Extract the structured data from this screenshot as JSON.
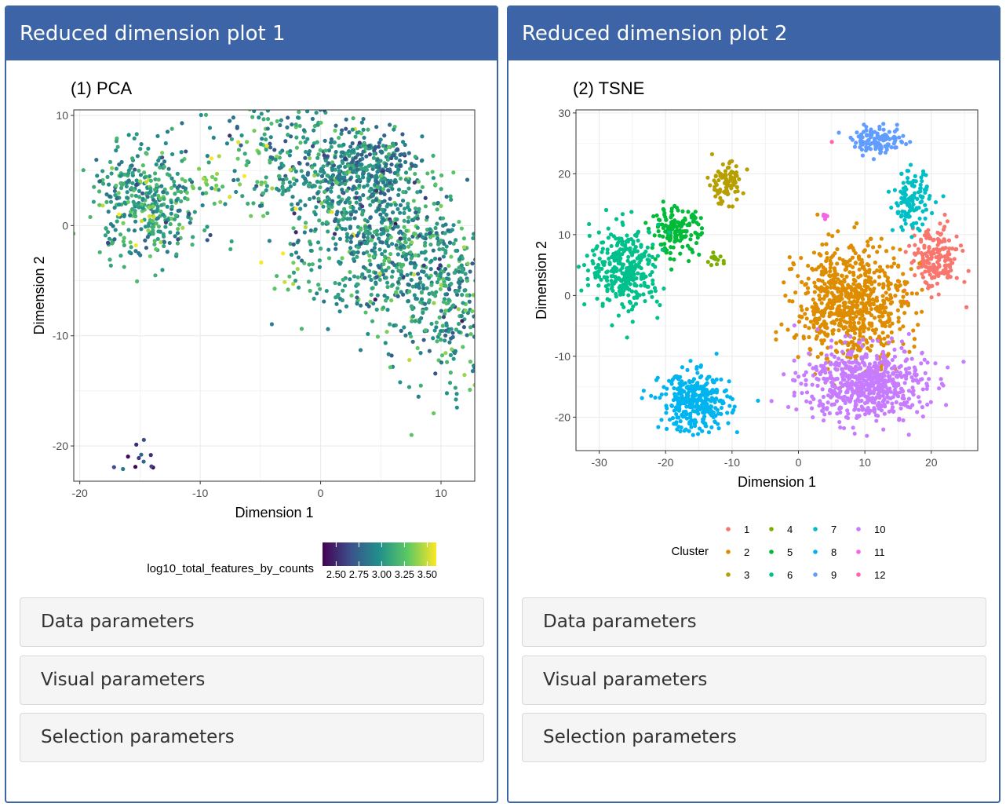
{
  "panels": [
    {
      "title": "Reduced dimension plot 1",
      "accordions": [
        "Data parameters",
        "Visual parameters",
        "Selection parameters"
      ]
    },
    {
      "title": "Reduced dimension plot 2",
      "accordions": [
        "Data parameters",
        "Visual parameters",
        "Selection parameters"
      ]
    }
  ],
  "chart_data": [
    {
      "type": "scatter",
      "title": "(1) PCA",
      "xlabel": "Dimension 1",
      "ylabel": "Dimension 2",
      "xlim": [
        -20.5,
        12.8
      ],
      "ylim": [
        -23.2,
        10.5
      ],
      "xticks": [
        "-20",
        "-10",
        "0",
        "10"
      ],
      "xtick_values": [
        -20,
        -10,
        0,
        10
      ],
      "yticks": [
        "-20",
        "-10",
        "0",
        "10"
      ],
      "ytick_values": [
        -20,
        -10,
        0,
        10
      ],
      "grid": true,
      "color_by": "log10_total_features_by_counts",
      "colorbar": {
        "title": "log10_total_features_by_counts",
        "range": [
          2.35,
          3.6
        ],
        "tick_labels": [
          "2.50",
          "2.75",
          "3.00",
          "3.25",
          "3.50"
        ],
        "tick_values": [
          2.5,
          2.75,
          3.0,
          3.25,
          3.5
        ],
        "colors": [
          "#440154",
          "#3b528b",
          "#21908c",
          "#5dc863",
          "#fde725"
        ]
      },
      "legend_position": "bottom",
      "clusters": [
        {
          "cx": 5.5,
          "cy": -1.5,
          "sx": 3.2,
          "sy": 9.0,
          "rot": 0.78,
          "n": 1400,
          "val": 3.0
        },
        {
          "cx": 4.0,
          "cy": 5.5,
          "sx": 2.0,
          "sy": 1.6,
          "rot": 0.3,
          "n": 260,
          "val": 2.9
        },
        {
          "cx": -14.5,
          "cy": 2.0,
          "sx": 2.2,
          "sy": 2.4,
          "rot": 0.0,
          "n": 380,
          "val": 3.05
        },
        {
          "cx": -8.0,
          "cy": 4.5,
          "sx": 1.5,
          "sy": 1.3,
          "rot": 0.0,
          "n": 28,
          "val": 3.35
        },
        {
          "cx": -15.0,
          "cy": -20.8,
          "sx": 1.2,
          "sy": 0.8,
          "rot": 0.0,
          "n": 12,
          "val": 2.5
        },
        {
          "cx": -2.5,
          "cy": -5.5,
          "sx": 1.0,
          "sy": 3.0,
          "rot": 0.0,
          "n": 14,
          "val": 3.45
        }
      ]
    },
    {
      "type": "scatter",
      "title": "(2) TSNE",
      "xlabel": "Dimension 1",
      "ylabel": "Dimension 2",
      "xlim": [
        -33.5,
        27
      ],
      "ylim": [
        -25.5,
        30.5
      ],
      "xticks": [
        "-30",
        "-20",
        "-10",
        "0",
        "10",
        "20"
      ],
      "xtick_values": [
        -30,
        -20,
        -10,
        0,
        10,
        20
      ],
      "yticks": [
        "-20",
        "-10",
        "0",
        "10",
        "20",
        "30"
      ],
      "ytick_values": [
        -20,
        -10,
        0,
        10,
        20,
        30
      ],
      "grid": true,
      "legend_position": "bottom",
      "legend": {
        "title": "Cluster",
        "items": [
          "1",
          "2",
          "3",
          "4",
          "5",
          "6",
          "7",
          "8",
          "9",
          "10",
          "11",
          "12"
        ],
        "colors": [
          "#f8766d",
          "#de8c00",
          "#b79f00",
          "#7cae00",
          "#00ba38",
          "#00c08b",
          "#00bfc4",
          "#00b4f0",
          "#619cff",
          "#c77cff",
          "#f564e3",
          "#ff64b0"
        ]
      },
      "clusters": [
        {
          "cx": 20.5,
          "cy": 6.0,
          "sx": 2.5,
          "sy": 3.5,
          "n": 180,
          "c": 0
        },
        {
          "cx": 8.0,
          "cy": -1.5,
          "sx": 5.5,
          "sy": 6.5,
          "n": 720,
          "c": 1
        },
        {
          "cx": -11.0,
          "cy": 18.5,
          "sx": 1.8,
          "sy": 2.2,
          "n": 90,
          "c": 2
        },
        {
          "cx": -12.5,
          "cy": 5.8,
          "sx": 0.8,
          "sy": 0.6,
          "n": 14,
          "c": 3
        },
        {
          "cx": -18.5,
          "cy": 10.5,
          "sx": 2.5,
          "sy": 2.5,
          "n": 150,
          "c": 4
        },
        {
          "cx": -26.0,
          "cy": 4.5,
          "sx": 3.5,
          "sy": 4.5,
          "n": 320,
          "c": 5
        },
        {
          "cx": 17.0,
          "cy": 15.5,
          "sx": 1.8,
          "sy": 3.2,
          "n": 130,
          "c": 6
        },
        {
          "cx": -15.5,
          "cy": -17.5,
          "sx": 3.5,
          "sy": 3.2,
          "n": 330,
          "c": 7
        },
        {
          "cx": 12.0,
          "cy": 25.5,
          "sx": 2.6,
          "sy": 1.4,
          "n": 120,
          "c": 8
        },
        {
          "cx": 10.0,
          "cy": -14.5,
          "sx": 6.0,
          "sy": 4.0,
          "n": 620,
          "c": 9
        },
        {
          "cx": 4.0,
          "cy": 13.0,
          "sx": 0.4,
          "sy": 0.3,
          "n": 5,
          "c": 10
        },
        {
          "cx": 5.0,
          "cy": 25.3,
          "sx": 0.05,
          "sy": 0.05,
          "n": 1,
          "c": 11
        }
      ]
    }
  ]
}
